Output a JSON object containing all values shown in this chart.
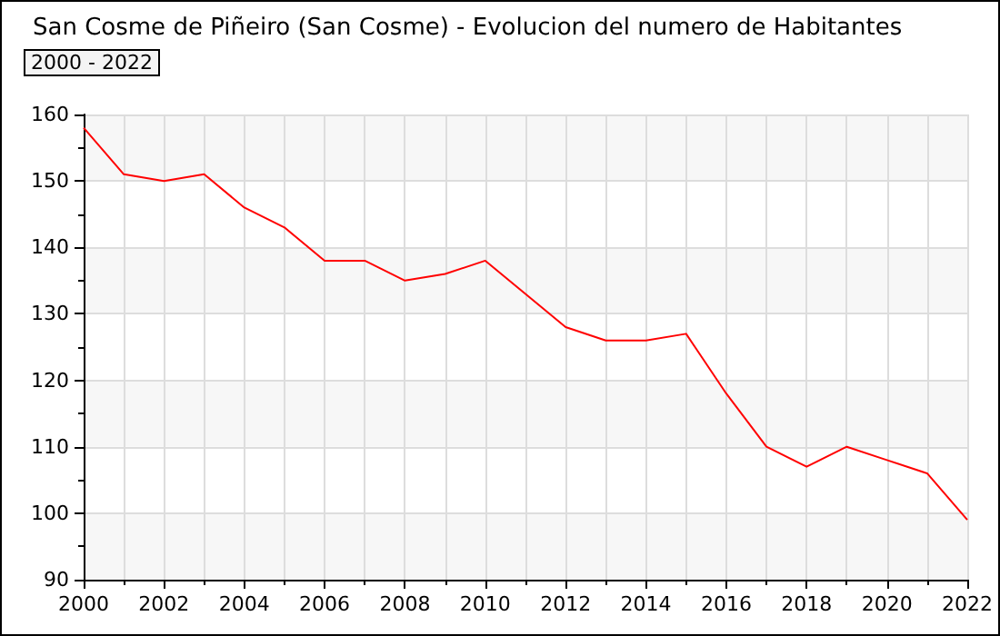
{
  "chart_data": {
    "type": "line",
    "title": "San Cosme de Piñeiro (San Cosme) - Evolucion del numero de Habitantes",
    "subtitle": "2000 - 2022",
    "x": [
      2000,
      2001,
      2002,
      2003,
      2004,
      2005,
      2006,
      2007,
      2008,
      2009,
      2010,
      2011,
      2012,
      2013,
      2014,
      2015,
      2016,
      2017,
      2018,
      2019,
      2020,
      2021,
      2022
    ],
    "series": [
      {
        "color": "#ff0000",
        "values": [
          158,
          151,
          150,
          151,
          146,
          143,
          138,
          138,
          135,
          136,
          138,
          133,
          128,
          126,
          126,
          127,
          118,
          110,
          107,
          110,
          108,
          106,
          99
        ]
      }
    ],
    "xlim": [
      2000,
      2022
    ],
    "xticks": [
      2000,
      2002,
      2004,
      2006,
      2008,
      2010,
      2012,
      2014,
      2016,
      2018,
      2020,
      2022
    ],
    "ylim": [
      90,
      160
    ],
    "yticks": [
      90,
      100,
      110,
      120,
      130,
      140,
      150,
      160
    ],
    "grid": true,
    "marker": "none",
    "line_style": "solid"
  }
}
